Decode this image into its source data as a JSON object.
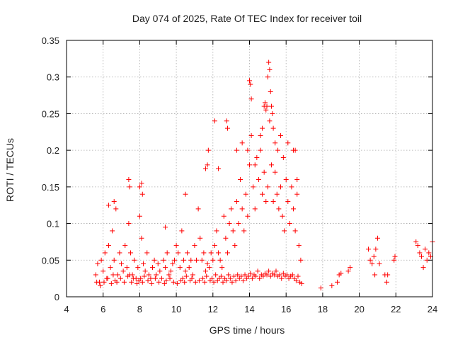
{
  "chart_data": {
    "type": "scatter",
    "title": "Day 074 of 2025, Rate Of TEC Index for receiver toil",
    "xlabel": "GPS time / hours",
    "ylabel": "ROTI / TECUs",
    "xlim": [
      4,
      24
    ],
    "ylim": [
      0,
      0.35
    ],
    "xticks": [
      4,
      6,
      8,
      10,
      12,
      14,
      16,
      18,
      20,
      22,
      24
    ],
    "xtick_labels": [
      "4",
      "6",
      "8",
      "10",
      "12",
      "14",
      "16",
      "18",
      "20",
      "22",
      "24"
    ],
    "yticks": [
      0,
      0.05,
      0.1,
      0.15,
      0.2,
      0.25,
      0.3,
      0.35
    ],
    "ytick_labels": [
      "0",
      "0.05",
      "0.1",
      "0.15",
      "0.2",
      "0.25",
      "0.3",
      "0.35"
    ],
    "grid": true,
    "marker": "+",
    "color": "#ff0000",
    "series": [
      {
        "name": "ROTI",
        "x": [
          5.6,
          5.7,
          5.8,
          5.9,
          6.0,
          6.1,
          6.2,
          6.3,
          6.4,
          6.5,
          6.6,
          6.7,
          6.8,
          6.9,
          7.0,
          7.1,
          7.2,
          7.3,
          7.4,
          7.5,
          7.6,
          7.7,
          7.8,
          7.9,
          8.0,
          8.1,
          8.2,
          8.3,
          8.4,
          8.5,
          8.6,
          8.7,
          8.8,
          8.9,
          9.0,
          9.1,
          9.2,
          9.3,
          9.4,
          9.5,
          9.6,
          9.7,
          9.8,
          9.9,
          10.0,
          10.1,
          10.2,
          10.3,
          10.4,
          10.5,
          10.6,
          10.7,
          10.8,
          10.9,
          11.0,
          11.1,
          11.2,
          11.3,
          11.4,
          11.5,
          11.6,
          11.7,
          11.8,
          11.9,
          12.0,
          12.1,
          12.2,
          12.3,
          12.4,
          12.5,
          12.6,
          12.7,
          12.8,
          12.9,
          13.0,
          13.1,
          13.2,
          13.3,
          13.4,
          13.5,
          13.6,
          13.7,
          13.8,
          13.9,
          14.0,
          14.1,
          14.2,
          14.3,
          14.4,
          14.5,
          14.6,
          14.7,
          14.8,
          14.9,
          15.0,
          15.1,
          15.2,
          15.3,
          15.4,
          15.5,
          15.6,
          15.7,
          15.8,
          15.9,
          16.0,
          16.1,
          16.2,
          16.3,
          16.4,
          16.5,
          16.6,
          16.7,
          16.8,
          5.65,
          5.85,
          6.05,
          6.25,
          6.45,
          6.55,
          6.65,
          6.75,
          6.95,
          7.15,
          7.35,
          7.45,
          7.55,
          7.65,
          7.85,
          7.95,
          8.05,
          8.15,
          8.25,
          8.45,
          8.65,
          8.85,
          9.05,
          9.35,
          9.45,
          9.65,
          9.85,
          10.05,
          10.25,
          10.35,
          10.45,
          10.55,
          10.75,
          10.85,
          11.05,
          11.25,
          11.45,
          11.55,
          11.65,
          11.85,
          11.95,
          12.05,
          12.15,
          12.25,
          12.35,
          12.45,
          12.55,
          12.65,
          12.75,
          12.85,
          12.95,
          13.05,
          13.15,
          13.25,
          13.35,
          13.45,
          13.55,
          13.65,
          13.75,
          13.85,
          13.95,
          14.05,
          14.15,
          14.25,
          14.35,
          14.45,
          14.55,
          14.65,
          14.75,
          14.85,
          14.95,
          15.05,
          15.15,
          15.25,
          15.35,
          15.45,
          15.55,
          15.65,
          15.75,
          15.85,
          15.95,
          16.05,
          16.15,
          16.25,
          16.35,
          16.45,
          16.55,
          16.65,
          16.75,
          16.85,
          6.3,
          6.6,
          7.4,
          7.45,
          8.0,
          8.1,
          8.15,
          9.4,
          10.5,
          11.6,
          11.7,
          11.75,
          12.1,
          12.3,
          12.75,
          12.8,
          13.3,
          13.6,
          13.9,
          14.0,
          14.05,
          14.1,
          14.3,
          14.6,
          14.7,
          14.8,
          14.85,
          14.9,
          14.95,
          15.0,
          15.05,
          15.1,
          15.15,
          15.2,
          15.25,
          15.3,
          15.4,
          15.55,
          15.7,
          15.85,
          16.1,
          16.4,
          16.5,
          16.6,
          17.9,
          18.5,
          18.8,
          18.9,
          19.0,
          19.4,
          19.5,
          20.5,
          20.6,
          20.7,
          20.8,
          20.85,
          20.9,
          21.0,
          21.1,
          21.4,
          21.5,
          21.55,
          21.9,
          21.95,
          23.1,
          23.2,
          23.3,
          23.4,
          23.5,
          23.6,
          23.7,
          23.8,
          23.9,
          24.0
        ],
        "y": [
          0.03,
          0.045,
          0.02,
          0.05,
          0.035,
          0.06,
          0.025,
          0.07,
          0.04,
          0.09,
          0.05,
          0.12,
          0.03,
          0.06,
          0.045,
          0.035,
          0.07,
          0.04,
          0.1,
          0.06,
          0.03,
          0.05,
          0.025,
          0.04,
          0.11,
          0.08,
          0.045,
          0.035,
          0.06,
          0.03,
          0.025,
          0.04,
          0.05,
          0.03,
          0.045,
          0.035,
          0.025,
          0.05,
          0.04,
          0.06,
          0.03,
          0.035,
          0.045,
          0.05,
          0.07,
          0.06,
          0.04,
          0.09,
          0.05,
          0.035,
          0.06,
          0.04,
          0.05,
          0.03,
          0.07,
          0.05,
          0.12,
          0.08,
          0.05,
          0.06,
          0.035,
          0.045,
          0.04,
          0.06,
          0.05,
          0.07,
          0.09,
          0.06,
          0.05,
          0.04,
          0.11,
          0.08,
          0.06,
          0.1,
          0.12,
          0.09,
          0.07,
          0.13,
          0.1,
          0.16,
          0.12,
          0.09,
          0.14,
          0.11,
          0.18,
          0.22,
          0.15,
          0.12,
          0.19,
          0.16,
          0.2,
          0.14,
          0.17,
          0.13,
          0.15,
          0.24,
          0.18,
          0.13,
          0.17,
          0.14,
          0.12,
          0.15,
          0.11,
          0.09,
          0.16,
          0.13,
          0.1,
          0.15,
          0.12,
          0.09,
          0.14,
          0.07,
          0.05,
          0.02,
          0.015,
          0.02,
          0.025,
          0.018,
          0.03,
          0.022,
          0.02,
          0.025,
          0.02,
          0.028,
          0.03,
          0.02,
          0.025,
          0.018,
          0.022,
          0.025,
          0.02,
          0.028,
          0.022,
          0.018,
          0.025,
          0.02,
          0.018,
          0.022,
          0.025,
          0.02,
          0.018,
          0.022,
          0.025,
          0.02,
          0.028,
          0.022,
          0.025,
          0.02,
          0.022,
          0.025,
          0.02,
          0.028,
          0.022,
          0.025,
          0.02,
          0.03,
          0.022,
          0.025,
          0.028,
          0.02,
          0.025,
          0.022,
          0.03,
          0.025,
          0.02,
          0.028,
          0.022,
          0.03,
          0.025,
          0.028,
          0.022,
          0.03,
          0.025,
          0.028,
          0.032,
          0.025,
          0.03,
          0.028,
          0.035,
          0.025,
          0.03,
          0.028,
          0.032,
          0.03,
          0.035,
          0.028,
          0.032,
          0.03,
          0.035,
          0.028,
          0.03,
          0.025,
          0.032,
          0.028,
          0.03,
          0.025,
          0.028,
          0.03,
          0.025,
          0.022,
          0.028,
          0.02,
          0.018,
          0.125,
          0.13,
          0.16,
          0.15,
          0.15,
          0.155,
          0.14,
          0.095,
          0.14,
          0.175,
          0.18,
          0.2,
          0.24,
          0.175,
          0.24,
          0.23,
          0.2,
          0.21,
          0.2,
          0.295,
          0.29,
          0.27,
          0.18,
          0.22,
          0.23,
          0.26,
          0.265,
          0.255,
          0.26,
          0.3,
          0.32,
          0.31,
          0.28,
          0.26,
          0.25,
          0.23,
          0.21,
          0.2,
          0.22,
          0.19,
          0.21,
          0.2,
          0.2,
          0.16,
          0.012,
          0.015,
          0.02,
          0.03,
          0.032,
          0.035,
          0.04,
          0.065,
          0.05,
          0.045,
          0.055,
          0.03,
          0.065,
          0.08,
          0.045,
          0.03,
          0.02,
          0.03,
          0.05,
          0.055,
          0.075,
          0.07,
          0.06,
          0.055,
          0.04,
          0.065,
          0.05,
          0.06,
          0.055,
          0.075
        ]
      }
    ]
  }
}
